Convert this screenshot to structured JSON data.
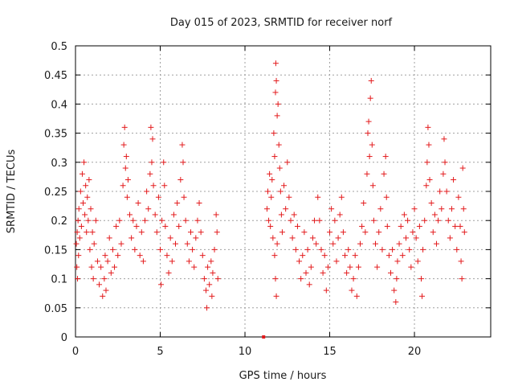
{
  "chart_data": {
    "type": "scatter",
    "title": "Day 015 of 2023, SRMTID for receiver norf",
    "xlabel": "GPS time / hours",
    "ylabel": "SRMTID / TECUs",
    "xlim": [
      0,
      24.5
    ],
    "ylim": [
      0,
      0.5
    ],
    "xticks": [
      0,
      5,
      10,
      15,
      20
    ],
    "xtick_labels": [
      "0",
      "5",
      "10",
      "15",
      "20"
    ],
    "yticks": [
      0,
      0.05,
      0.1,
      0.15,
      0.2,
      0.25,
      0.3,
      0.35,
      0.4,
      0.45,
      0.5
    ],
    "ytick_labels": [
      "0",
      "0.05",
      "0.1",
      "0.15",
      "0.2",
      "0.25",
      "0.3",
      "0.35",
      "0.4",
      "0.45",
      "0.5"
    ],
    "grid": true,
    "marker": "+",
    "color": "#e31a1c",
    "series": [
      {
        "name": "SRMTID",
        "points": [
          [
            0.05,
            0.16
          ],
          [
            0.08,
            0.12
          ],
          [
            0.1,
            0.18
          ],
          [
            0.12,
            0.1
          ],
          [
            0.15,
            0.2
          ],
          [
            0.18,
            0.14
          ],
          [
            0.2,
            0.22
          ],
          [
            0.25,
            0.17
          ],
          [
            0.3,
            0.25
          ],
          [
            0.35,
            0.19
          ],
          [
            0.4,
            0.28
          ],
          [
            0.45,
            0.23
          ],
          [
            0.5,
            0.3
          ],
          [
            0.55,
            0.21
          ],
          [
            0.6,
            0.26
          ],
          [
            0.65,
            0.18
          ],
          [
            0.7,
            0.24
          ],
          [
            0.75,
            0.2
          ],
          [
            0.8,
            0.27
          ],
          [
            0.85,
            0.15
          ],
          [
            0.9,
            0.22
          ],
          [
            0.95,
            0.12
          ],
          [
            1.0,
            0.18
          ],
          [
            1.05,
            0.1
          ],
          [
            1.1,
            0.16
          ],
          [
            1.2,
            0.2
          ],
          [
            1.3,
            0.13
          ],
          [
            1.4,
            0.09
          ],
          [
            1.5,
            0.12
          ],
          [
            1.6,
            0.07
          ],
          [
            1.7,
            0.1
          ],
          [
            1.75,
            0.14
          ],
          [
            1.8,
            0.08
          ],
          [
            1.9,
            0.13
          ],
          [
            2.0,
            0.17
          ],
          [
            2.1,
            0.11
          ],
          [
            2.2,
            0.15
          ],
          [
            2.3,
            0.12
          ],
          [
            2.4,
            0.19
          ],
          [
            2.5,
            0.14
          ],
          [
            2.6,
            0.2
          ],
          [
            2.7,
            0.16
          ],
          [
            2.8,
            0.26
          ],
          [
            2.85,
            0.33
          ],
          [
            2.9,
            0.36
          ],
          [
            2.95,
            0.29
          ],
          [
            3.0,
            0.31
          ],
          [
            3.05,
            0.24
          ],
          [
            3.1,
            0.27
          ],
          [
            3.2,
            0.21
          ],
          [
            3.3,
            0.17
          ],
          [
            3.4,
            0.2
          ],
          [
            3.5,
            0.15
          ],
          [
            3.6,
            0.19
          ],
          [
            3.7,
            0.23
          ],
          [
            3.8,
            0.14
          ],
          [
            3.9,
            0.18
          ],
          [
            4.0,
            0.13
          ],
          [
            4.1,
            0.2
          ],
          [
            4.2,
            0.25
          ],
          [
            4.3,
            0.22
          ],
          [
            4.4,
            0.28
          ],
          [
            4.45,
            0.36
          ],
          [
            4.5,
            0.3
          ],
          [
            4.55,
            0.34
          ],
          [
            4.6,
            0.26
          ],
          [
            4.7,
            0.21
          ],
          [
            4.8,
            0.18
          ],
          [
            4.9,
            0.24
          ],
          [
            5.0,
            0.15
          ],
          [
            5.05,
            0.09
          ],
          [
            5.1,
            0.2
          ],
          [
            5.2,
            0.3
          ],
          [
            5.25,
            0.26
          ],
          [
            5.3,
            0.19
          ],
          [
            5.4,
            0.14
          ],
          [
            5.5,
            0.11
          ],
          [
            5.6,
            0.17
          ],
          [
            5.7,
            0.13
          ],
          [
            5.8,
            0.21
          ],
          [
            5.9,
            0.16
          ],
          [
            6.0,
            0.23
          ],
          [
            6.1,
            0.19
          ],
          [
            6.2,
            0.27
          ],
          [
            6.3,
            0.33
          ],
          [
            6.35,
            0.3
          ],
          [
            6.4,
            0.24
          ],
          [
            6.5,
            0.2
          ],
          [
            6.6,
            0.16
          ],
          [
            6.7,
            0.13
          ],
          [
            6.8,
            0.18
          ],
          [
            6.9,
            0.15
          ],
          [
            7.0,
            0.12
          ],
          [
            7.1,
            0.17
          ],
          [
            7.2,
            0.2
          ],
          [
            7.3,
            0.23
          ],
          [
            7.4,
            0.18
          ],
          [
            7.5,
            0.14
          ],
          [
            7.6,
            0.1
          ],
          [
            7.7,
            0.08
          ],
          [
            7.75,
            0.05
          ],
          [
            7.8,
            0.12
          ],
          [
            7.9,
            0.09
          ],
          [
            8.0,
            0.13
          ],
          [
            8.05,
            0.07
          ],
          [
            8.1,
            0.11
          ],
          [
            8.2,
            0.15
          ],
          [
            8.3,
            0.21
          ],
          [
            8.35,
            0.18
          ],
          [
            8.4,
            0.1
          ],
          [
            11.3,
            0.22
          ],
          [
            11.35,
            0.25
          ],
          [
            11.4,
            0.2
          ],
          [
            11.45,
            0.28
          ],
          [
            11.5,
            0.19
          ],
          [
            11.55,
            0.24
          ],
          [
            11.6,
            0.27
          ],
          [
            11.65,
            0.17
          ],
          [
            11.7,
            0.35
          ],
          [
            11.75,
            0.31
          ],
          [
            11.8,
            0.42
          ],
          [
            11.82,
            0.47
          ],
          [
            11.85,
            0.44
          ],
          [
            11.9,
            0.38
          ],
          [
            11.95,
            0.4
          ],
          [
            12.0,
            0.33
          ],
          [
            12.05,
            0.29
          ],
          [
            12.1,
            0.25
          ],
          [
            11.75,
            0.14
          ],
          [
            11.8,
            0.1
          ],
          [
            11.85,
            0.07
          ],
          [
            11.9,
            0.16
          ],
          [
            12.15,
            0.21
          ],
          [
            12.2,
            0.18
          ],
          [
            12.3,
            0.26
          ],
          [
            12.4,
            0.22
          ],
          [
            12.5,
            0.3
          ],
          [
            12.6,
            0.24
          ],
          [
            12.7,
            0.2
          ],
          [
            12.8,
            0.17
          ],
          [
            12.9,
            0.21
          ],
          [
            13.0,
            0.15
          ],
          [
            13.1,
            0.19
          ],
          [
            13.2,
            0.13
          ],
          [
            13.3,
            0.1
          ],
          [
            13.4,
            0.14
          ],
          [
            13.5,
            0.18
          ],
          [
            13.6,
            0.11
          ],
          [
            13.7,
            0.15
          ],
          [
            13.8,
            0.09
          ],
          [
            13.9,
            0.12
          ],
          [
            14.0,
            0.17
          ],
          [
            14.1,
            0.2
          ],
          [
            14.2,
            0.16
          ],
          [
            14.3,
            0.24
          ],
          [
            14.4,
            0.2
          ],
          [
            14.5,
            0.15
          ],
          [
            14.6,
            0.11
          ],
          [
            14.7,
            0.14
          ],
          [
            14.8,
            0.08
          ],
          [
            14.9,
            0.12
          ],
          [
            15.0,
            0.18
          ],
          [
            15.1,
            0.22
          ],
          [
            15.2,
            0.16
          ],
          [
            15.3,
            0.2
          ],
          [
            15.4,
            0.13
          ],
          [
            15.5,
            0.17
          ],
          [
            15.6,
            0.21
          ],
          [
            15.7,
            0.24
          ],
          [
            15.8,
            0.18
          ],
          [
            15.9,
            0.14
          ],
          [
            16.0,
            0.11
          ],
          [
            16.1,
            0.15
          ],
          [
            16.2,
            0.12
          ],
          [
            16.3,
            0.08
          ],
          [
            16.4,
            0.1
          ],
          [
            16.5,
            0.14
          ],
          [
            16.6,
            0.07
          ],
          [
            16.7,
            0.12
          ],
          [
            16.8,
            0.16
          ],
          [
            16.9,
            0.19
          ],
          [
            17.0,
            0.23
          ],
          [
            17.1,
            0.18
          ],
          [
            17.2,
            0.28
          ],
          [
            17.25,
            0.35
          ],
          [
            17.3,
            0.37
          ],
          [
            17.35,
            0.31
          ],
          [
            17.4,
            0.41
          ],
          [
            17.45,
            0.44
          ],
          [
            17.5,
            0.33
          ],
          [
            17.55,
            0.26
          ],
          [
            17.6,
            0.2
          ],
          [
            17.7,
            0.16
          ],
          [
            17.8,
            0.12
          ],
          [
            17.9,
            0.18
          ],
          [
            18.0,
            0.22
          ],
          [
            18.1,
            0.15
          ],
          [
            18.2,
            0.28
          ],
          [
            18.3,
            0.31
          ],
          [
            18.35,
            0.24
          ],
          [
            18.4,
            0.19
          ],
          [
            18.5,
            0.14
          ],
          [
            18.6,
            0.11
          ],
          [
            18.7,
            0.15
          ],
          [
            18.8,
            0.08
          ],
          [
            18.9,
            0.06
          ],
          [
            18.95,
            0.1
          ],
          [
            19.0,
            0.13
          ],
          [
            19.1,
            0.16
          ],
          [
            19.2,
            0.19
          ],
          [
            19.3,
            0.14
          ],
          [
            19.4,
            0.21
          ],
          [
            19.5,
            0.17
          ],
          [
            19.6,
            0.2
          ],
          [
            19.7,
            0.15
          ],
          [
            19.8,
            0.12
          ],
          [
            19.9,
            0.18
          ],
          [
            20.0,
            0.22
          ],
          [
            20.1,
            0.17
          ],
          [
            20.2,
            0.13
          ],
          [
            20.3,
            0.19
          ],
          [
            20.4,
            0.1
          ],
          [
            20.45,
            0.07
          ],
          [
            20.5,
            0.15
          ],
          [
            20.6,
            0.2
          ],
          [
            20.7,
            0.26
          ],
          [
            20.75,
            0.3
          ],
          [
            20.8,
            0.36
          ],
          [
            20.85,
            0.33
          ],
          [
            20.9,
            0.27
          ],
          [
            21.0,
            0.23
          ],
          [
            21.1,
            0.18
          ],
          [
            21.2,
            0.21
          ],
          [
            21.3,
            0.16
          ],
          [
            21.4,
            0.2
          ],
          [
            21.5,
            0.25
          ],
          [
            21.6,
            0.22
          ],
          [
            21.7,
            0.28
          ],
          [
            21.75,
            0.34
          ],
          [
            21.8,
            0.3
          ],
          [
            21.9,
            0.25
          ],
          [
            22.0,
            0.2
          ],
          [
            22.1,
            0.17
          ],
          [
            22.2,
            0.22
          ],
          [
            22.3,
            0.27
          ],
          [
            22.4,
            0.19
          ],
          [
            22.5,
            0.15
          ],
          [
            22.6,
            0.24
          ],
          [
            22.7,
            0.19
          ],
          [
            22.75,
            0.13
          ],
          [
            22.8,
            0.1
          ],
          [
            22.85,
            0.29
          ],
          [
            22.9,
            0.22
          ],
          [
            22.95,
            0.18
          ]
        ]
      }
    ],
    "outlier_points": [
      [
        11.1,
        0.0
      ]
    ]
  }
}
